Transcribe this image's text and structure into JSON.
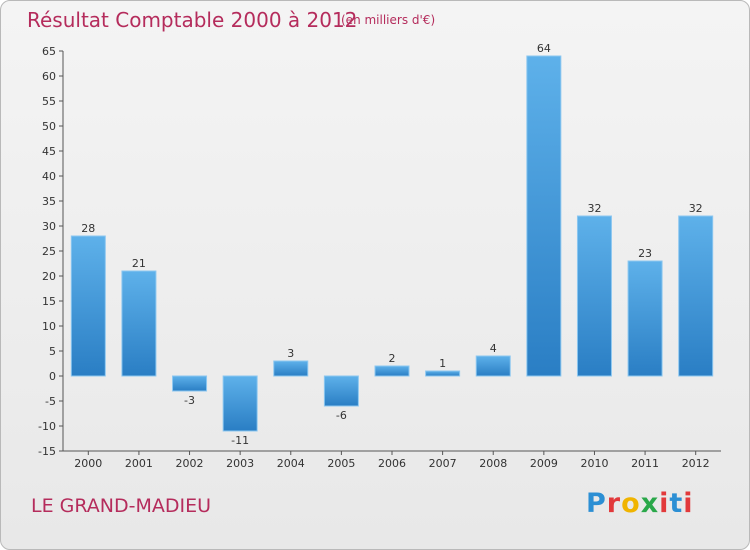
{
  "header": {
    "title": "Résultat Comptable 2000 à 2012",
    "unit_note": "(en milliers d'€)"
  },
  "footer": {
    "commune": "LE GRAND-MADIEU",
    "logo_letters": [
      {
        "ch": "P",
        "color": "#2c8fd4"
      },
      {
        "ch": "r",
        "color": "#e2393b"
      },
      {
        "ch": "o",
        "color": "#f0b400"
      },
      {
        "ch": "x",
        "color": "#2aa84a"
      },
      {
        "ch": "i",
        "color": "#e2393b"
      },
      {
        "ch": "t",
        "color": "#2c8fd4"
      },
      {
        "ch": "i",
        "color": "#e2393b"
      }
    ]
  },
  "colors": {
    "bar_light": "#5eb1ea",
    "bar_dark": "#2a7ec4",
    "accent": "#b52c5c"
  },
  "chart_data": {
    "type": "bar",
    "title": "Résultat Comptable 2000 à 2012",
    "subtitle": "(en milliers d'€)",
    "xlabel": "",
    "ylabel": "",
    "categories": [
      "2000",
      "2001",
      "2002",
      "2003",
      "2004",
      "2005",
      "2006",
      "2007",
      "2008",
      "2009",
      "2010",
      "2011",
      "2012"
    ],
    "values": [
      28,
      21,
      -3,
      -11,
      3,
      -6,
      2,
      1,
      4,
      64,
      32,
      23,
      32
    ],
    "ylim": [
      -15,
      65
    ],
    "yticks": [
      -15,
      -10,
      -5,
      0,
      5,
      10,
      15,
      20,
      25,
      30,
      35,
      40,
      45,
      50,
      55,
      60,
      65
    ],
    "grid": false,
    "legend": "none"
  }
}
